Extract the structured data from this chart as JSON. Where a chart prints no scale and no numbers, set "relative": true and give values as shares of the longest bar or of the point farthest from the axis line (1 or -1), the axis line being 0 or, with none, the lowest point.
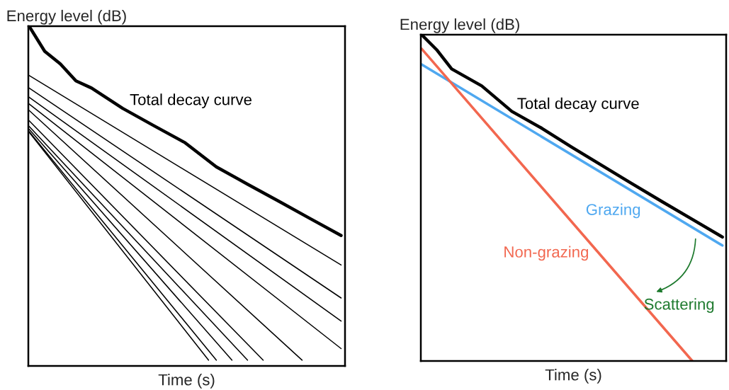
{
  "chart_data": [
    {
      "type": "line",
      "relative": true,
      "xlabel": "Time (s)",
      "ylabel": "Energy level (dB)",
      "annotations": [
        "Total decay curve"
      ],
      "categories": [
        null,
        null,
        null,
        null,
        null,
        null,
        null,
        null,
        null,
        null,
        null,
        null,
        null,
        null,
        null,
        null,
        null,
        null,
        null,
        null,
        null,
        null,
        null,
        null,
        null,
        null,
        null,
        null,
        null,
        null,
        null,
        null,
        null,
        null,
        null,
        null,
        null,
        null,
        null,
        null,
        null
      ],
      "series": [
        {
          "color": "#000000",
          "values": [
            1.0,
            null,
            0.926,
            null,
            0.889,
            null,
            0.839,
            null,
            0.818,
            null,
            null,
            null,
            0.758,
            null,
            null,
            null,
            0.707,
            null,
            null,
            null,
            0.657,
            null,
            null,
            null,
            0.586,
            null,
            null,
            null,
            0.535,
            null,
            null,
            null,
            0.485,
            null,
            null,
            null,
            0.434,
            null,
            null,
            null,
            0.384
          ]
        },
        {
          "color": "#000000",
          "values": [
            0.855,
            null,
            null,
            null,
            null,
            null,
            null,
            null,
            null,
            null,
            null,
            null,
            null,
            null,
            null,
            null,
            null,
            null,
            null,
            null,
            null,
            null,
            null,
            null,
            null,
            null,
            null,
            null,
            null,
            null,
            null,
            null,
            null,
            null,
            null,
            null,
            null,
            null,
            null,
            null,
            0.297
          ]
        },
        {
          "color": "#000000",
          "values": [
            0.818,
            null,
            null,
            null,
            null,
            null,
            null,
            null,
            null,
            null,
            null,
            null,
            null,
            null,
            null,
            null,
            null,
            null,
            null,
            null,
            null,
            null,
            null,
            null,
            null,
            null,
            null,
            null,
            null,
            null,
            null,
            null,
            null,
            null,
            null,
            null,
            null,
            null,
            null,
            null,
            0.2
          ]
        },
        {
          "color": "#000000",
          "values": [
            0.791,
            null,
            null,
            null,
            null,
            null,
            null,
            null,
            null,
            null,
            null,
            null,
            null,
            null,
            null,
            null,
            null,
            null,
            null,
            null,
            null,
            null,
            null,
            null,
            null,
            null,
            null,
            null,
            null,
            null,
            null,
            null,
            null,
            null,
            null,
            null,
            null,
            null,
            null,
            null,
            0.132
          ]
        },
        {
          "color": "#000000",
          "values": [
            0.771,
            null,
            null,
            null,
            null,
            null,
            null,
            null,
            null,
            null,
            null,
            null,
            null,
            null,
            null,
            null,
            null,
            null,
            null,
            null,
            null,
            null,
            null,
            null,
            null,
            null,
            null,
            null,
            null,
            null,
            null,
            null,
            null,
            null,
            null,
            null,
            null,
            null,
            null,
            null,
            0.051
          ]
        },
        {
          "color": "#000000",
          "values": [
            0.752,
            null,
            null,
            null,
            null,
            null,
            null,
            null,
            null,
            null,
            null,
            null,
            null,
            null,
            null,
            null,
            null,
            null,
            null,
            null,
            null,
            null,
            null,
            null,
            null,
            null,
            null,
            null,
            null,
            null,
            null,
            null,
            null,
            null,
            null,
            0.017,
            null,
            null,
            null,
            null,
            null
          ]
        },
        {
          "color": "#000000",
          "values": [
            0.722,
            null,
            null,
            null,
            null,
            null,
            null,
            null,
            null,
            null,
            null,
            null,
            null,
            null,
            null,
            null,
            null,
            null,
            null,
            null,
            null,
            null,
            null,
            null,
            null,
            null,
            null,
            null,
            null,
            null,
            0.017,
            null,
            null,
            null,
            null,
            null,
            null,
            null,
            null,
            null,
            null
          ]
        },
        {
          "color": "#000000",
          "values": [
            0.705,
            null,
            null,
            null,
            null,
            null,
            null,
            null,
            null,
            null,
            null,
            null,
            null,
            null,
            null,
            null,
            null,
            null,
            null,
            null,
            null,
            null,
            null,
            null,
            null,
            null,
            null,
            null,
            0.017,
            null,
            null,
            null,
            null,
            null,
            null,
            null,
            null,
            null,
            null,
            null,
            null
          ]
        },
        {
          "color": "#000000",
          "values": [
            0.697,
            null,
            null,
            null,
            null,
            null,
            null,
            null,
            null,
            null,
            null,
            null,
            null,
            null,
            null,
            null,
            null,
            null,
            null,
            null,
            null,
            null,
            null,
            null,
            null,
            null,
            0.017,
            null,
            null,
            null,
            null,
            null,
            null,
            null,
            null,
            null,
            null,
            null,
            null,
            null,
            null
          ]
        },
        {
          "color": "#000000",
          "values": [
            0.69,
            null,
            null,
            null,
            null,
            null,
            null,
            null,
            null,
            null,
            null,
            null,
            null,
            null,
            null,
            null,
            null,
            null,
            null,
            null,
            null,
            null,
            null,
            null,
            0.017,
            null,
            null,
            null,
            null,
            null,
            null,
            null,
            null,
            null,
            null,
            null,
            null,
            null,
            null,
            null,
            null
          ]
        },
        {
          "color": "#000000",
          "values": [
            0.688,
            null,
            null,
            null,
            null,
            null,
            null,
            null,
            null,
            null,
            null,
            null,
            null,
            null,
            null,
            null,
            null,
            null,
            null,
            null,
            null,
            null,
            null,
            0.017,
            null,
            null,
            null,
            null,
            null,
            null,
            null,
            null,
            null,
            null,
            null,
            null,
            null,
            null,
            null,
            null,
            null
          ]
        }
      ]
    },
    {
      "type": "line",
      "relative": true,
      "xlabel": "Time (s)",
      "ylabel": "Energy level (dB)",
      "annotations": [
        "Total decay curve",
        "Scattering"
      ],
      "categories": [
        null,
        null,
        null,
        null,
        null,
        null,
        null,
        null,
        null,
        null,
        null,
        null,
        null,
        null,
        null,
        null,
        null,
        null,
        null,
        null,
        null,
        null,
        null,
        null,
        null,
        null,
        null,
        null,
        null,
        null,
        null,
        null,
        null,
        null,
        null,
        null,
        null,
        null,
        null,
        null,
        null
      ],
      "series": [
        {
          "color": "#000000",
          "values": [
            1.0,
            null,
            0.954,
            null,
            0.895,
            null,
            null,
            null,
            0.843,
            null,
            null,
            null,
            0.765,
            null,
            null,
            null,
            0.713,
            null,
            null,
            null,
            0.655,
            null,
            null,
            null,
            0.599,
            null,
            null,
            null,
            0.543,
            null,
            null,
            null,
            0.488,
            null,
            null,
            null,
            0.434,
            null,
            null,
            null,
            0.38
          ]
        },
        {
          "name": "Grazing",
          "color": "#4fa8f0",
          "values": [
            0.909,
            null,
            null,
            null,
            null,
            null,
            null,
            null,
            null,
            null,
            null,
            null,
            null,
            null,
            null,
            null,
            null,
            null,
            null,
            null,
            null,
            null,
            null,
            null,
            null,
            null,
            null,
            null,
            null,
            null,
            null,
            null,
            null,
            null,
            null,
            null,
            null,
            null,
            null,
            null,
            0.354
          ]
        },
        {
          "name": "Non-grazing",
          "color": "#f2674f",
          "values": [
            0.957,
            null,
            null,
            null,
            null,
            null,
            null,
            null,
            null,
            null,
            null,
            null,
            null,
            null,
            null,
            null,
            null,
            null,
            null,
            null,
            null,
            null,
            null,
            null,
            null,
            null,
            null,
            null,
            null,
            null,
            null,
            null,
            null,
            null,
            null,
            null,
            0,
            null,
            null,
            null,
            null
          ]
        }
      ]
    }
  ]
}
